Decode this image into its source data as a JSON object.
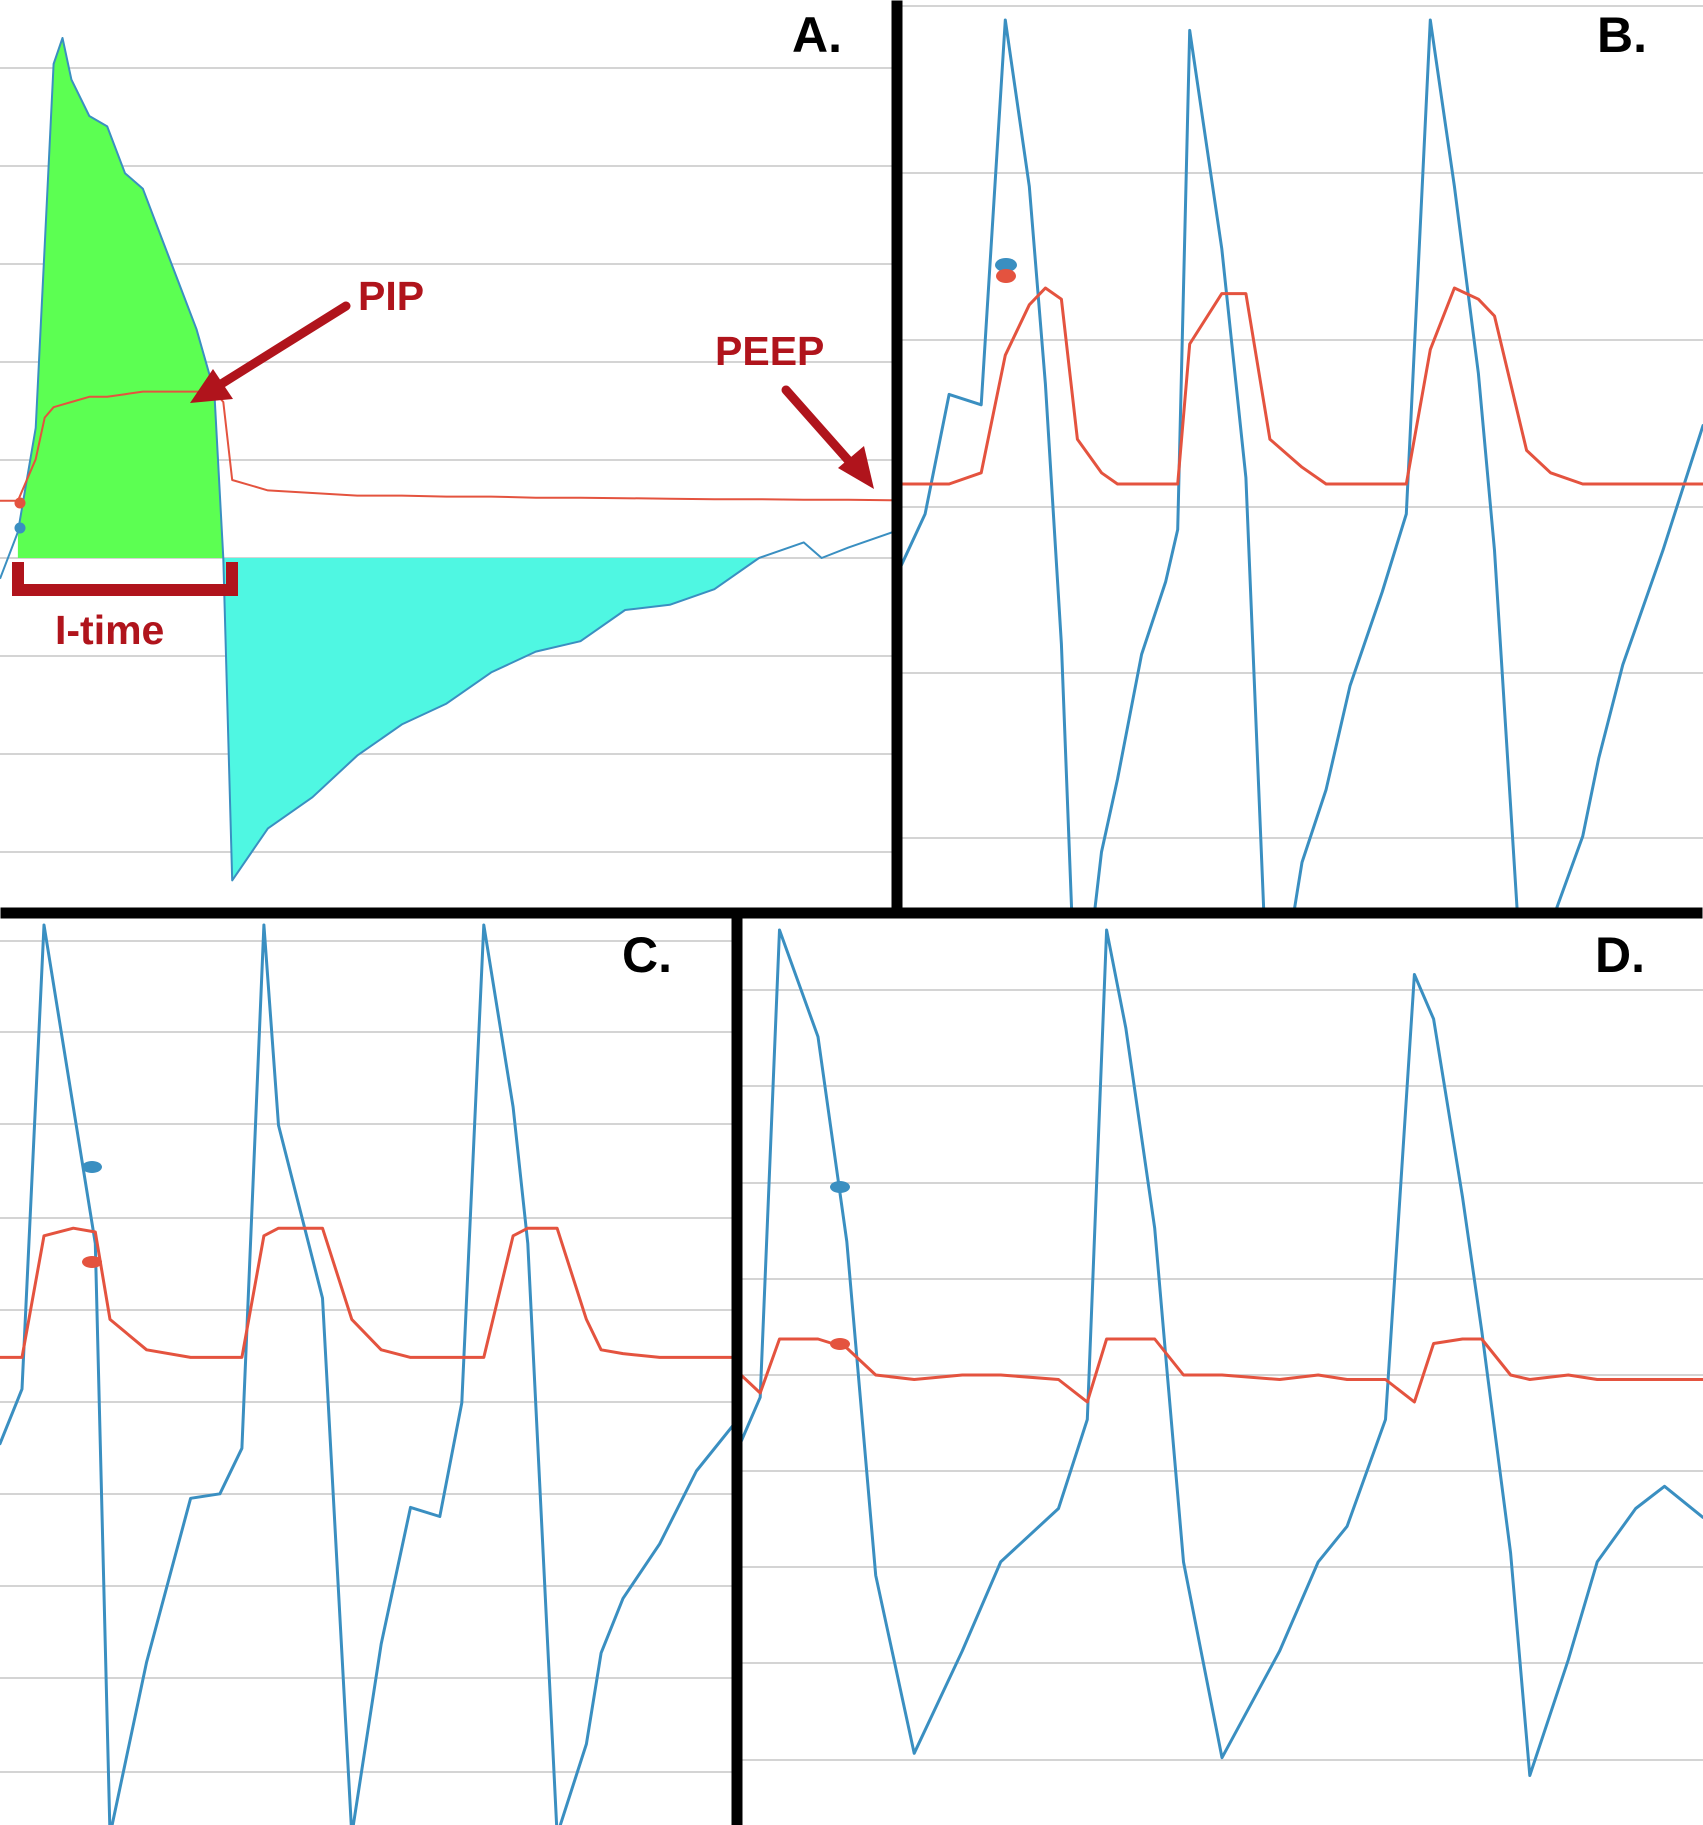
{
  "figure": {
    "panel_labels": [
      "A.",
      "B.",
      "C.",
      "D."
    ],
    "annotations": {
      "pip": "PIP",
      "peep": "PEEP",
      "itime": "I-time"
    },
    "colors": {
      "flow": "#3a8fc1",
      "pressure": "#e4533f",
      "inspiratory_fill": "#5cff52",
      "expiratory_fill": "#4ff7e2",
      "annotation": "#b0141c",
      "grid": "#c6c6c6",
      "divider": "#000000"
    }
  },
  "chart_data": [
    {
      "panel": "A.",
      "type": "line",
      "grid": "horizontal",
      "annotations": [
        "PIP",
        "PEEP",
        "I-time"
      ],
      "time": [
        0,
        0.02,
        0.04,
        0.05,
        0.06,
        0.07,
        0.08,
        0.1,
        0.12,
        0.14,
        0.16,
        0.18,
        0.2,
        0.22,
        0.24,
        0.25,
        0.26,
        0.3,
        0.35,
        0.4,
        0.45,
        0.5,
        0.55,
        0.6,
        0.65,
        0.7,
        0.75,
        0.8,
        0.85,
        0.9,
        0.92,
        0.95,
        1.0
      ],
      "series": [
        {
          "values": [
            -0.04,
            0.05,
            0.25,
            0.6,
            0.95,
            1.0,
            0.92,
            0.85,
            0.83,
            0.74,
            0.71,
            0.62,
            0.53,
            0.44,
            0.32,
            0.0,
            -0.62,
            -0.52,
            -0.46,
            -0.38,
            -0.32,
            -0.28,
            -0.22,
            -0.18,
            -0.16,
            -0.1,
            -0.09,
            -0.06,
            0.0,
            0.03,
            0.0,
            0.02,
            0.05
          ]
        },
        {
          "values": [
            0.11,
            0.11,
            0.19,
            0.27,
            0.29,
            0.295,
            0.3,
            0.31,
            0.31,
            0.315,
            0.32,
            0.32,
            0.32,
            0.32,
            0.32,
            0.3,
            0.15,
            0.13,
            0.125,
            0.12,
            0.12,
            0.118,
            0.118,
            0.116,
            0.116,
            0.115,
            0.114,
            0.113,
            0.113,
            0.112,
            0.112,
            0.112,
            0.111
          ]
        }
      ]
    },
    {
      "panel": "B.",
      "type": "line",
      "grid": "horizontal",
      "breaths": 3,
      "time": [
        0,
        0.03,
        0.06,
        0.1,
        0.13,
        0.16,
        0.18,
        0.2,
        0.22,
        0.25,
        0.27,
        0.3,
        0.33,
        0.345,
        0.36,
        0.4,
        0.43,
        0.46,
        0.5,
        0.53,
        0.56,
        0.6,
        0.63,
        0.66,
        0.69,
        0.72,
        0.74,
        0.78,
        0.81,
        0.85,
        0.87,
        0.9,
        0.95,
        1.0
      ],
      "series": [
        {
          "values": [
            -0.05,
            0.05,
            0.28,
            0.26,
            1.0,
            0.68,
            0.3,
            -0.2,
            -1.0,
            -0.6,
            -0.46,
            -0.22,
            -0.08,
            0.02,
            0.98,
            0.56,
            0.12,
            -1.0,
            -0.62,
            -0.48,
            -0.28,
            -0.1,
            0.05,
            1.0,
            0.68,
            0.32,
            -0.02,
            -1.0,
            -0.74,
            -0.57,
            -0.42,
            -0.24,
            -0.02,
            0.22
          ]
        },
        {
          "values": [
            0.1,
            0.1,
            0.1,
            0.12,
            0.33,
            0.42,
            0.45,
            0.43,
            0.18,
            0.12,
            0.1,
            0.1,
            0.1,
            0.1,
            0.35,
            0.44,
            0.44,
            0.18,
            0.13,
            0.1,
            0.1,
            0.1,
            0.1,
            0.34,
            0.45,
            0.43,
            0.4,
            0.16,
            0.12,
            0.1,
            0.1,
            0.1,
            0.1,
            0.1
          ]
        }
      ]
    },
    {
      "panel": "C.",
      "type": "line",
      "grid": "horizontal",
      "breaths": 3,
      "time": [
        0,
        0.03,
        0.06,
        0.1,
        0.13,
        0.15,
        0.2,
        0.26,
        0.3,
        0.33,
        0.36,
        0.38,
        0.44,
        0.48,
        0.52,
        0.56,
        0.6,
        0.63,
        0.66,
        0.7,
        0.72,
        0.76,
        0.8,
        0.82,
        0.85,
        0.9,
        0.95,
        1.0
      ],
      "series": [
        {
          "values": [
            -0.14,
            -0.02,
            1.0,
            0.6,
            0.3,
            -1.0,
            -0.62,
            -0.26,
            -0.25,
            -0.15,
            1.0,
            0.56,
            0.18,
            -1.0,
            -0.58,
            -0.28,
            -0.3,
            -0.05,
            1.0,
            0.6,
            0.3,
            -1.0,
            -0.8,
            -0.6,
            -0.48,
            -0.36,
            -0.2,
            -0.1
          ]
        },
        {
          "values": [
            0.02,
            0.02,
            0.34,
            0.36,
            0.35,
            0.12,
            0.04,
            0.02,
            0.02,
            0.02,
            0.34,
            0.36,
            0.36,
            0.12,
            0.04,
            0.02,
            0.02,
            0.02,
            0.02,
            0.34,
            0.36,
            0.36,
            0.12,
            0.04,
            0.03,
            0.02,
            0.02,
            0.02
          ]
        }
      ]
    },
    {
      "panel": "D.",
      "type": "line",
      "grid": "horizontal",
      "breaths": 3,
      "time": [
        0,
        0.02,
        0.04,
        0.08,
        0.11,
        0.14,
        0.18,
        0.23,
        0.27,
        0.33,
        0.36,
        0.38,
        0.4,
        0.43,
        0.46,
        0.5,
        0.56,
        0.6,
        0.63,
        0.67,
        0.7,
        0.72,
        0.75,
        0.77,
        0.8,
        0.82,
        0.86,
        0.89,
        0.93,
        0.96,
        1.0
      ],
      "series": [
        {
          "values": [
            -0.15,
            -0.05,
            1.0,
            0.76,
            0.3,
            -0.45,
            -0.85,
            -0.62,
            -0.42,
            -0.3,
            -0.1,
            1.0,
            0.78,
            0.33,
            -0.42,
            -0.86,
            -0.62,
            -0.42,
            -0.34,
            -0.1,
            0.9,
            0.8,
            0.4,
            0.1,
            -0.4,
            -0.9,
            -0.64,
            -0.42,
            -0.3,
            -0.25,
            -0.32
          ]
        },
        {
          "values": [
            0.0,
            -0.04,
            0.08,
            0.08,
            0.06,
            0.0,
            -0.01,
            0.0,
            0.0,
            -0.01,
            -0.06,
            0.08,
            0.08,
            0.08,
            0.0,
            0.0,
            -0.01,
            0.0,
            -0.01,
            -0.01,
            -0.06,
            0.07,
            0.08,
            0.08,
            0.0,
            -0.01,
            0.0,
            -0.01,
            -0.01,
            -0.01,
            -0.01
          ]
        }
      ]
    }
  ]
}
